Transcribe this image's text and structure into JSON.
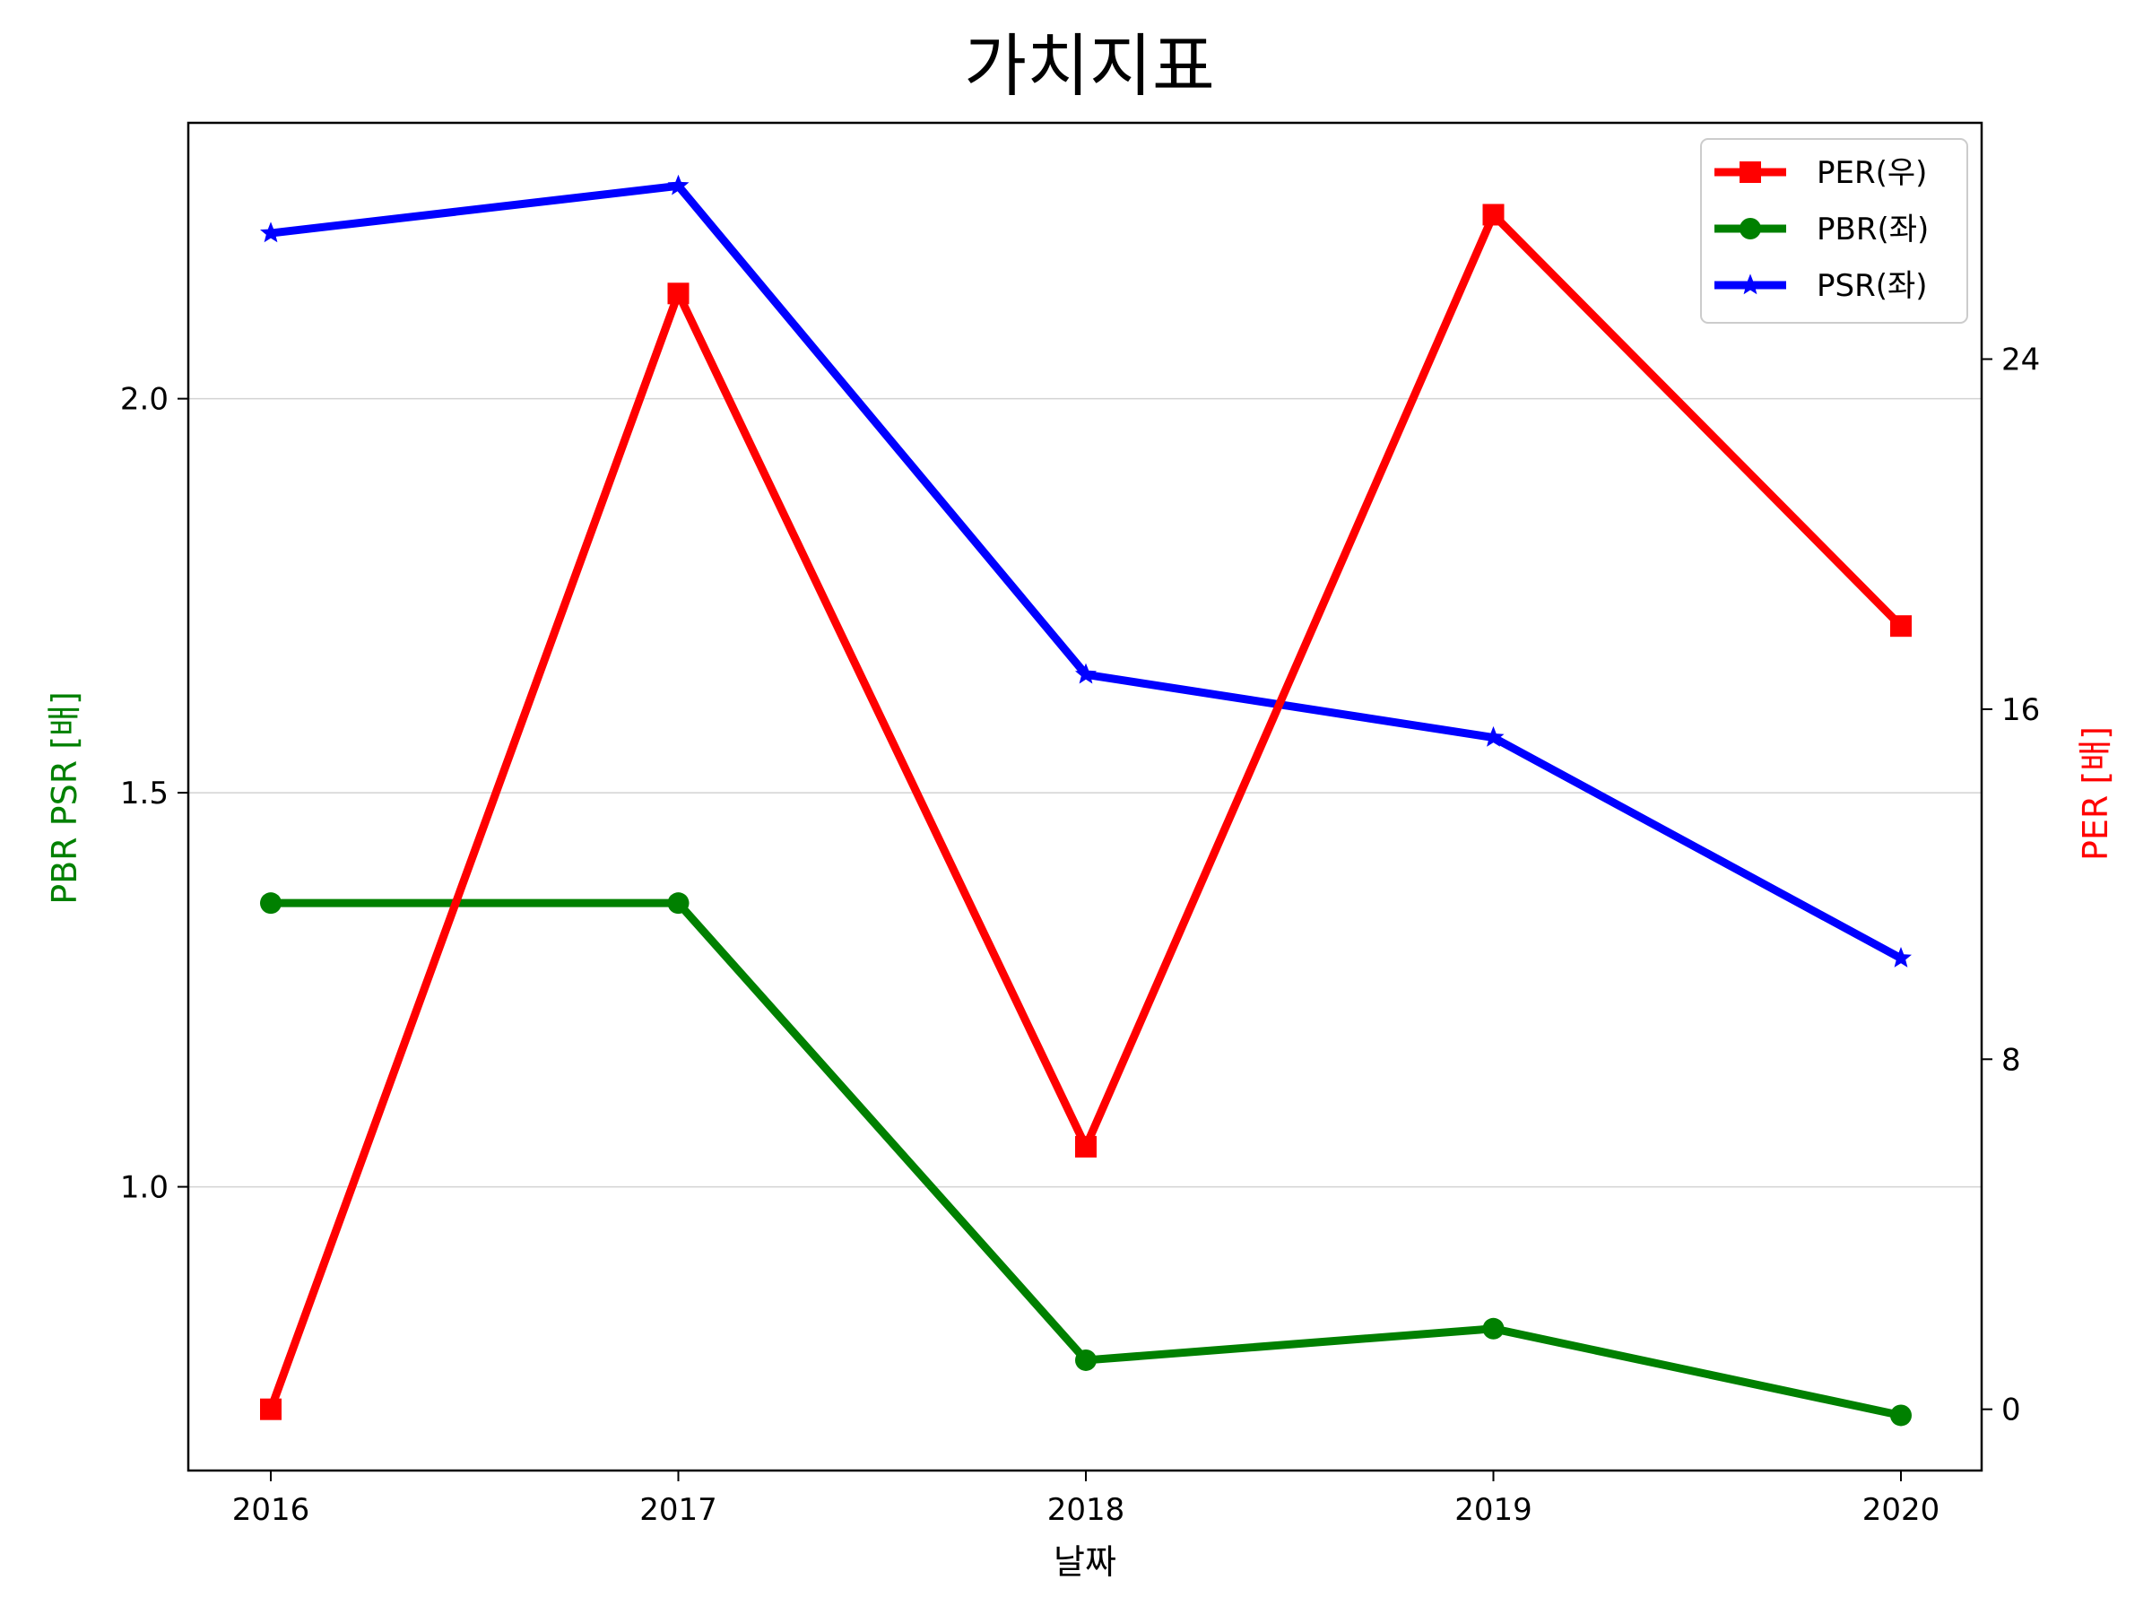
{
  "chart_data": {
    "type": "line",
    "title": "가치지표",
    "xlabel": "날짜",
    "ylabel_left": "PBR PSR [배]",
    "ylabel_right": "PER [배]",
    "categories": [
      "2016",
      "2017",
      "2018",
      "2019",
      "2020"
    ],
    "ylim_left": [
      0.64,
      2.35
    ],
    "ylim_right": [
      -1.4,
      29.4
    ],
    "left_ticks": [
      "1.0",
      "1.5",
      "2.0"
    ],
    "left_tick_values": [
      1.0,
      1.5,
      2.0
    ],
    "right_ticks": [
      "0",
      "8",
      "16",
      "24"
    ],
    "right_tick_values": [
      0,
      8,
      16,
      24
    ],
    "grid": "horizontal",
    "legend_position": "top-right",
    "series": [
      {
        "name": "PER(우)",
        "axis": "right",
        "color": "#ff0000",
        "marker": "square",
        "values": [
          0,
          25.5,
          6.0,
          27.3,
          17.9
        ]
      },
      {
        "name": "PBR(좌)",
        "axis": "left",
        "color": "#008000",
        "marker": "circle",
        "values": [
          1.36,
          1.36,
          0.78,
          0.82,
          0.71
        ]
      },
      {
        "name": "PSR(좌)",
        "axis": "left",
        "color": "#0000ff",
        "marker": "star",
        "values": [
          2.21,
          2.27,
          1.65,
          1.57,
          1.29
        ]
      }
    ]
  }
}
